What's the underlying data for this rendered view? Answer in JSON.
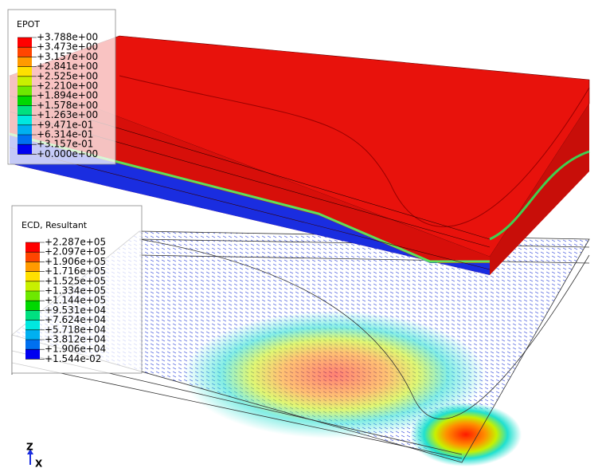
{
  "legends": [
    {
      "title": "EPOT",
      "labels": [
        "+3.788e+00",
        "+3.473e+00",
        "+3.157e+00",
        "+2.841e+00",
        "+2.525e+00",
        "+2.210e+00",
        "+1.894e+00",
        "+1.578e+00",
        "+1.263e+00",
        "+9.471e-01",
        "+6.314e-01",
        "+3.157e-01",
        "+0.000e+00"
      ]
    },
    {
      "title": "ECD, Resultant",
      "labels": [
        "+2.287e+05",
        "+2.097e+05",
        "+1.906e+05",
        "+1.716e+05",
        "+1.525e+05",
        "+1.334e+05",
        "+1.144e+05",
        "+9.531e+04",
        "+7.624e+04",
        "+5.718e+04",
        "+3.812e+04",
        "+1.906e+04",
        "+1.544e-02"
      ]
    }
  ],
  "triad": {
    "z": "Z",
    "x": "X"
  }
}
